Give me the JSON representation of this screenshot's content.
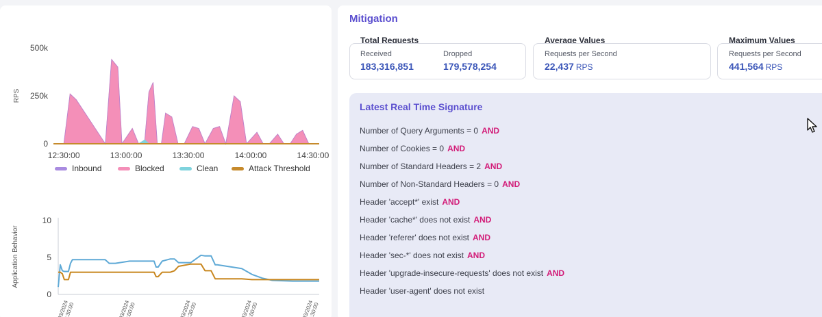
{
  "rps_chart": {
    "ylabel": "RPS",
    "yticks": [
      "500k",
      "250k",
      "0"
    ],
    "xticks": [
      "12:30:00",
      "13:00:00",
      "13:30:00",
      "14:00:00",
      "14:30:00"
    ],
    "legend": [
      {
        "label": "Inbound",
        "color": "#a98be0"
      },
      {
        "label": "Blocked",
        "color": "#f48fb8"
      },
      {
        "label": "Clean",
        "color": "#7fd3dd"
      },
      {
        "label": "Attack Threshold",
        "color": "#c68a2c"
      }
    ]
  },
  "behavior_chart": {
    "ylabel": "Application Behavior",
    "yticks": [
      "10",
      "5",
      "0"
    ],
    "xticks": [
      "03/2024 12:30:00",
      "03/2024 13:00:00",
      "03/2024 13:30:00",
      "03/2024 14:00:00",
      "03/2024 14:30:00"
    ],
    "series_colors": {
      "behavior": "#5ea9d6",
      "threshold": "#c8861e"
    }
  },
  "chart_data": [
    {
      "type": "area",
      "title": "",
      "xlabel": "",
      "ylabel": "RPS",
      "ylim": [
        0,
        500000
      ],
      "x": [
        "12:25",
        "12:30",
        "12:33",
        "12:36",
        "12:50",
        "12:53",
        "12:56",
        "12:58",
        "13:03",
        "13:06",
        "13:09",
        "13:11",
        "13:13",
        "13:15",
        "13:17",
        "13:19",
        "13:22",
        "13:25",
        "13:28",
        "13:32",
        "13:35",
        "13:38",
        "13:42",
        "13:45",
        "13:48",
        "13:52",
        "13:55",
        "13:58",
        "14:03",
        "14:06",
        "14:09",
        "14:13",
        "14:16",
        "14:19",
        "14:22",
        "14:25",
        "14:28",
        "14:33"
      ],
      "series": [
        {
          "name": "Blocked",
          "values": [
            0,
            0,
            260000,
            230000,
            0,
            440000,
            400000,
            0,
            80000,
            0,
            20000,
            270000,
            320000,
            0,
            0,
            160000,
            140000,
            0,
            0,
            90000,
            80000,
            0,
            80000,
            90000,
            0,
            250000,
            220000,
            0,
            60000,
            0,
            0,
            50000,
            0,
            0,
            50000,
            70000,
            0,
            0
          ]
        },
        {
          "name": "Inbound",
          "values": [
            0,
            0,
            260000,
            230000,
            0,
            440000,
            400000,
            0,
            80000,
            0,
            20000,
            270000,
            320000,
            0,
            0,
            160000,
            140000,
            0,
            0,
            90000,
            80000,
            0,
            80000,
            90000,
            0,
            250000,
            220000,
            0,
            60000,
            0,
            0,
            50000,
            0,
            0,
            50000,
            70000,
            0,
            0
          ]
        },
        {
          "name": "Clean",
          "values": [
            0,
            0,
            0,
            0,
            0,
            0,
            0,
            0,
            0,
            0,
            20000,
            0,
            0,
            0,
            0,
            0,
            0,
            0,
            0,
            0,
            0,
            0,
            0,
            0,
            0,
            0,
            0,
            0,
            0,
            0,
            0,
            0,
            0,
            0,
            0,
            0,
            0,
            0
          ]
        },
        {
          "name": "Attack Threshold",
          "values": [
            0,
            0,
            0,
            0,
            0,
            0,
            0,
            0,
            0,
            0,
            0,
            0,
            0,
            0,
            0,
            0,
            0,
            0,
            0,
            0,
            0,
            0,
            0,
            0,
            0,
            0,
            0,
            0,
            0,
            0,
            0,
            0,
            0,
            0,
            0,
            0,
            0,
            0
          ]
        }
      ]
    },
    {
      "type": "line",
      "title": "",
      "xlabel": "",
      "ylabel": "Application Behavior",
      "ylim": [
        0,
        10
      ],
      "x": [
        "12:25",
        "12:26",
        "12:27",
        "12:28",
        "12:30",
        "12:31",
        "12:32",
        "12:33",
        "12:35",
        "12:40",
        "12:48",
        "12:50",
        "12:52",
        "12:53",
        "13:00",
        "13:10",
        "13:12",
        "13:13",
        "13:14",
        "13:16",
        "13:20",
        "13:22",
        "13:24",
        "13:30",
        "13:35",
        "13:37",
        "13:40",
        "13:42",
        "13:43",
        "13:55",
        "14:00",
        "14:05",
        "14:10",
        "14:20",
        "14:33"
      ],
      "series": [
        {
          "name": "Behavior",
          "values": [
            1.0,
            4.0,
            3.2,
            3.1,
            3.1,
            4.2,
            4.7,
            4.7,
            4.7,
            4.7,
            4.7,
            4.2,
            4.2,
            4.2,
            4.5,
            4.5,
            4.5,
            3.7,
            3.7,
            4.5,
            4.8,
            4.8,
            4.3,
            4.3,
            5.3,
            5.2,
            5.2,
            4.0,
            4.0,
            3.5,
            2.7,
            2.2,
            1.9,
            1.8,
            1.8
          ]
        },
        {
          "name": "Threshold",
          "values": [
            3.0,
            3.0,
            2.8,
            2.0,
            2.0,
            3.0,
            3.0,
            3.0,
            3.0,
            3.0,
            3.0,
            3.0,
            3.0,
            3.0,
            3.0,
            3.0,
            3.0,
            2.4,
            2.4,
            3.0,
            3.0,
            3.2,
            3.8,
            4.1,
            4.1,
            3.2,
            3.2,
            2.1,
            2.1,
            2.1,
            2.0,
            2.0,
            2.0,
            2.0,
            2.0
          ]
        }
      ]
    }
  ],
  "mitigation": {
    "title": "Mitigation",
    "total_requests": {
      "heading": "Total Requests",
      "received_label": "Received",
      "received_value": "183,316,851",
      "dropped_label": "Dropped",
      "dropped_value": "179,578,254"
    },
    "average_values": {
      "heading": "Average Values",
      "label": "Requests per Second",
      "value": "22,437",
      "unit": "RPS"
    },
    "maximum_values": {
      "heading": "Maximum Values",
      "label": "Requests per Second",
      "value": "441,564",
      "unit": "RPS"
    }
  },
  "signature": {
    "title": "Latest Real Time Signature",
    "and_label": "AND",
    "lines": [
      {
        "text": "Number of Query Arguments = 0",
        "and": true
      },
      {
        "text": "Number of Cookies = 0",
        "and": true
      },
      {
        "text": "Number of Standard Headers = 2",
        "and": true
      },
      {
        "text": "Number of Non-Standard Headers = 0",
        "and": true
      },
      {
        "text": "Header 'accept*' exist",
        "and": true
      },
      {
        "text": "Header 'cache*' does not exist",
        "and": true
      },
      {
        "text": "Header 'referer' does not exist",
        "and": true
      },
      {
        "text": "Header 'sec-*' does not exist",
        "and": true
      },
      {
        "text": "Header 'upgrade-insecure-requests' does not exist",
        "and": true
      },
      {
        "text": "Header 'user-agent' does not exist",
        "and": false
      }
    ]
  }
}
